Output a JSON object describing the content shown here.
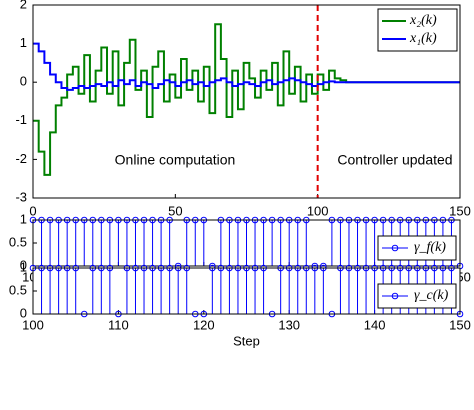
{
  "chart_data": [
    {
      "type": "line",
      "x": [
        0,
        2,
        4,
        6,
        8,
        10,
        12,
        14,
        16,
        18,
        20,
        22,
        24,
        26,
        28,
        30,
        32,
        34,
        36,
        38,
        40,
        42,
        44,
        46,
        48,
        50,
        52,
        54,
        56,
        58,
        60,
        62,
        64,
        66,
        68,
        70,
        72,
        74,
        76,
        78,
        80,
        82,
        84,
        86,
        88,
        90,
        92,
        94,
        96,
        98,
        100,
        102,
        104,
        106,
        108,
        110,
        112,
        114,
        116,
        118,
        120,
        122,
        124,
        126,
        128,
        130,
        132,
        134,
        136,
        138,
        140,
        142,
        144,
        146,
        148,
        150
      ],
      "series": [
        {
          "name": "x₂(k)",
          "color": "#008000",
          "values": [
            -1,
            -1.8,
            -2.4,
            -1.3,
            -0.6,
            -0.4,
            0.2,
            0.4,
            -0.3,
            0.7,
            -0.5,
            0.3,
            0.9,
            -0.3,
            0.8,
            -0.6,
            0.5,
            1.1,
            -0.2,
            0.3,
            -0.9,
            0.4,
            0.8,
            -0.5,
            0.2,
            -0.4,
            0.6,
            -0.2,
            0.3,
            -0.5,
            0.4,
            -0.8,
            1.5,
            0.6,
            -0.9,
            0.3,
            -0.7,
            0.5,
            0.1,
            -0.4,
            0.3,
            -0.2,
            0.5,
            -0.6,
            0.8,
            -0.3,
            0.4,
            -0.5,
            0.2,
            -0.3,
            0.2,
            -0.2,
            0.3,
            0.1,
            0.05,
            0,
            0,
            0,
            0,
            0,
            0,
            0,
            0,
            0,
            0,
            0,
            0,
            0,
            0,
            0,
            0,
            0,
            0,
            0,
            0,
            0
          ]
        },
        {
          "name": "x₁(k)",
          "color": "#0000ff",
          "values": [
            1,
            0.8,
            0.5,
            0.2,
            0,
            -0.15,
            -0.2,
            -0.15,
            -0.1,
            -0.15,
            -0.1,
            -0.05,
            -0.1,
            0,
            -0.1,
            0.05,
            -0.05,
            0.05,
            -0.1,
            0,
            -0.05,
            -0.15,
            -0.05,
            0.05,
            0,
            -0.1,
            0,
            0.05,
            -0.05,
            0,
            -0.1,
            0,
            0.05,
            0.1,
            0,
            -0.1,
            -0.05,
            0,
            -0.05,
            -0.1,
            0,
            0.05,
            -0.05,
            0,
            0.05,
            0.1,
            0.05,
            0,
            -0.05,
            -0.1,
            -0.05,
            0,
            0.02,
            0,
            0,
            0,
            0,
            0,
            0,
            0,
            0,
            0,
            0,
            0,
            0,
            0,
            0,
            0,
            0,
            0,
            0,
            0,
            0,
            0,
            0,
            0
          ]
        }
      ],
      "xlim": [
        0,
        150
      ],
      "xticks": [
        0,
        50,
        100,
        150
      ],
      "ylim": [
        -3,
        2
      ],
      "yticks": [
        -3,
        -2,
        -1,
        0,
        1,
        2
      ],
      "vline": 100,
      "vline_color": "#e00000",
      "annotations": [
        "Online computation",
        "Controller updated"
      ],
      "legend": "upper right"
    },
    {
      "type": "stem",
      "x": [
        100,
        101,
        102,
        103,
        104,
        105,
        106,
        107,
        108,
        109,
        110,
        111,
        112,
        113,
        114,
        115,
        116,
        117,
        118,
        119,
        120,
        121,
        122,
        123,
        124,
        125,
        126,
        127,
        128,
        129,
        130,
        131,
        132,
        133,
        134,
        135,
        136,
        137,
        138,
        139,
        140,
        141,
        142,
        143,
        144,
        145,
        146,
        147,
        148,
        149,
        150
      ],
      "series": [
        {
          "name": "γ_f(k)",
          "color": "#0000ff",
          "values": [
            1,
            1,
            1,
            1,
            1,
            1,
            1,
            1,
            1,
            1,
            1,
            1,
            1,
            1,
            1,
            1,
            1,
            0,
            1,
            1,
            1,
            0,
            1,
            1,
            1,
            1,
            1,
            1,
            1,
            1,
            1,
            1,
            1,
            0,
            0,
            1,
            1,
            1,
            1,
            1,
            1,
            1,
            1,
            1,
            1,
            1,
            1,
            1,
            1,
            1,
            0
          ]
        }
      ],
      "xlim": [
        100,
        150
      ],
      "xticks": [
        100,
        110,
        120,
        130,
        140,
        150
      ],
      "ylim": [
        0,
        1
      ],
      "yticks": [
        0,
        0.5,
        1
      ],
      "legend": "lower right"
    },
    {
      "type": "stem",
      "x": [
        100,
        101,
        102,
        103,
        104,
        105,
        106,
        107,
        108,
        109,
        110,
        111,
        112,
        113,
        114,
        115,
        116,
        117,
        118,
        119,
        120,
        121,
        122,
        123,
        124,
        125,
        126,
        127,
        128,
        129,
        130,
        131,
        132,
        133,
        134,
        135,
        136,
        137,
        138,
        139,
        140,
        141,
        142,
        143,
        144,
        145,
        146,
        147,
        148,
        149,
        150
      ],
      "series": [
        {
          "name": "γ_c(k)",
          "color": "#0000ff",
          "values": [
            1,
            1,
            1,
            1,
            1,
            1,
            0,
            1,
            1,
            1,
            0,
            1,
            1,
            1,
            1,
            1,
            1,
            1,
            1,
            0,
            0,
            1,
            1,
            1,
            1,
            1,
            1,
            1,
            0,
            1,
            1,
            1,
            1,
            1,
            1,
            0,
            1,
            1,
            1,
            1,
            1,
            1,
            1,
            1,
            1,
            1,
            1,
            1,
            1,
            1,
            0
          ]
        }
      ],
      "xlim": [
        100,
        150
      ],
      "xticks": [
        100,
        110,
        120,
        130,
        140,
        150
      ],
      "ylim": [
        0,
        1
      ],
      "yticks": [
        0,
        0.5,
        1
      ],
      "xlabel": "Step",
      "legend": "lower right"
    }
  ]
}
